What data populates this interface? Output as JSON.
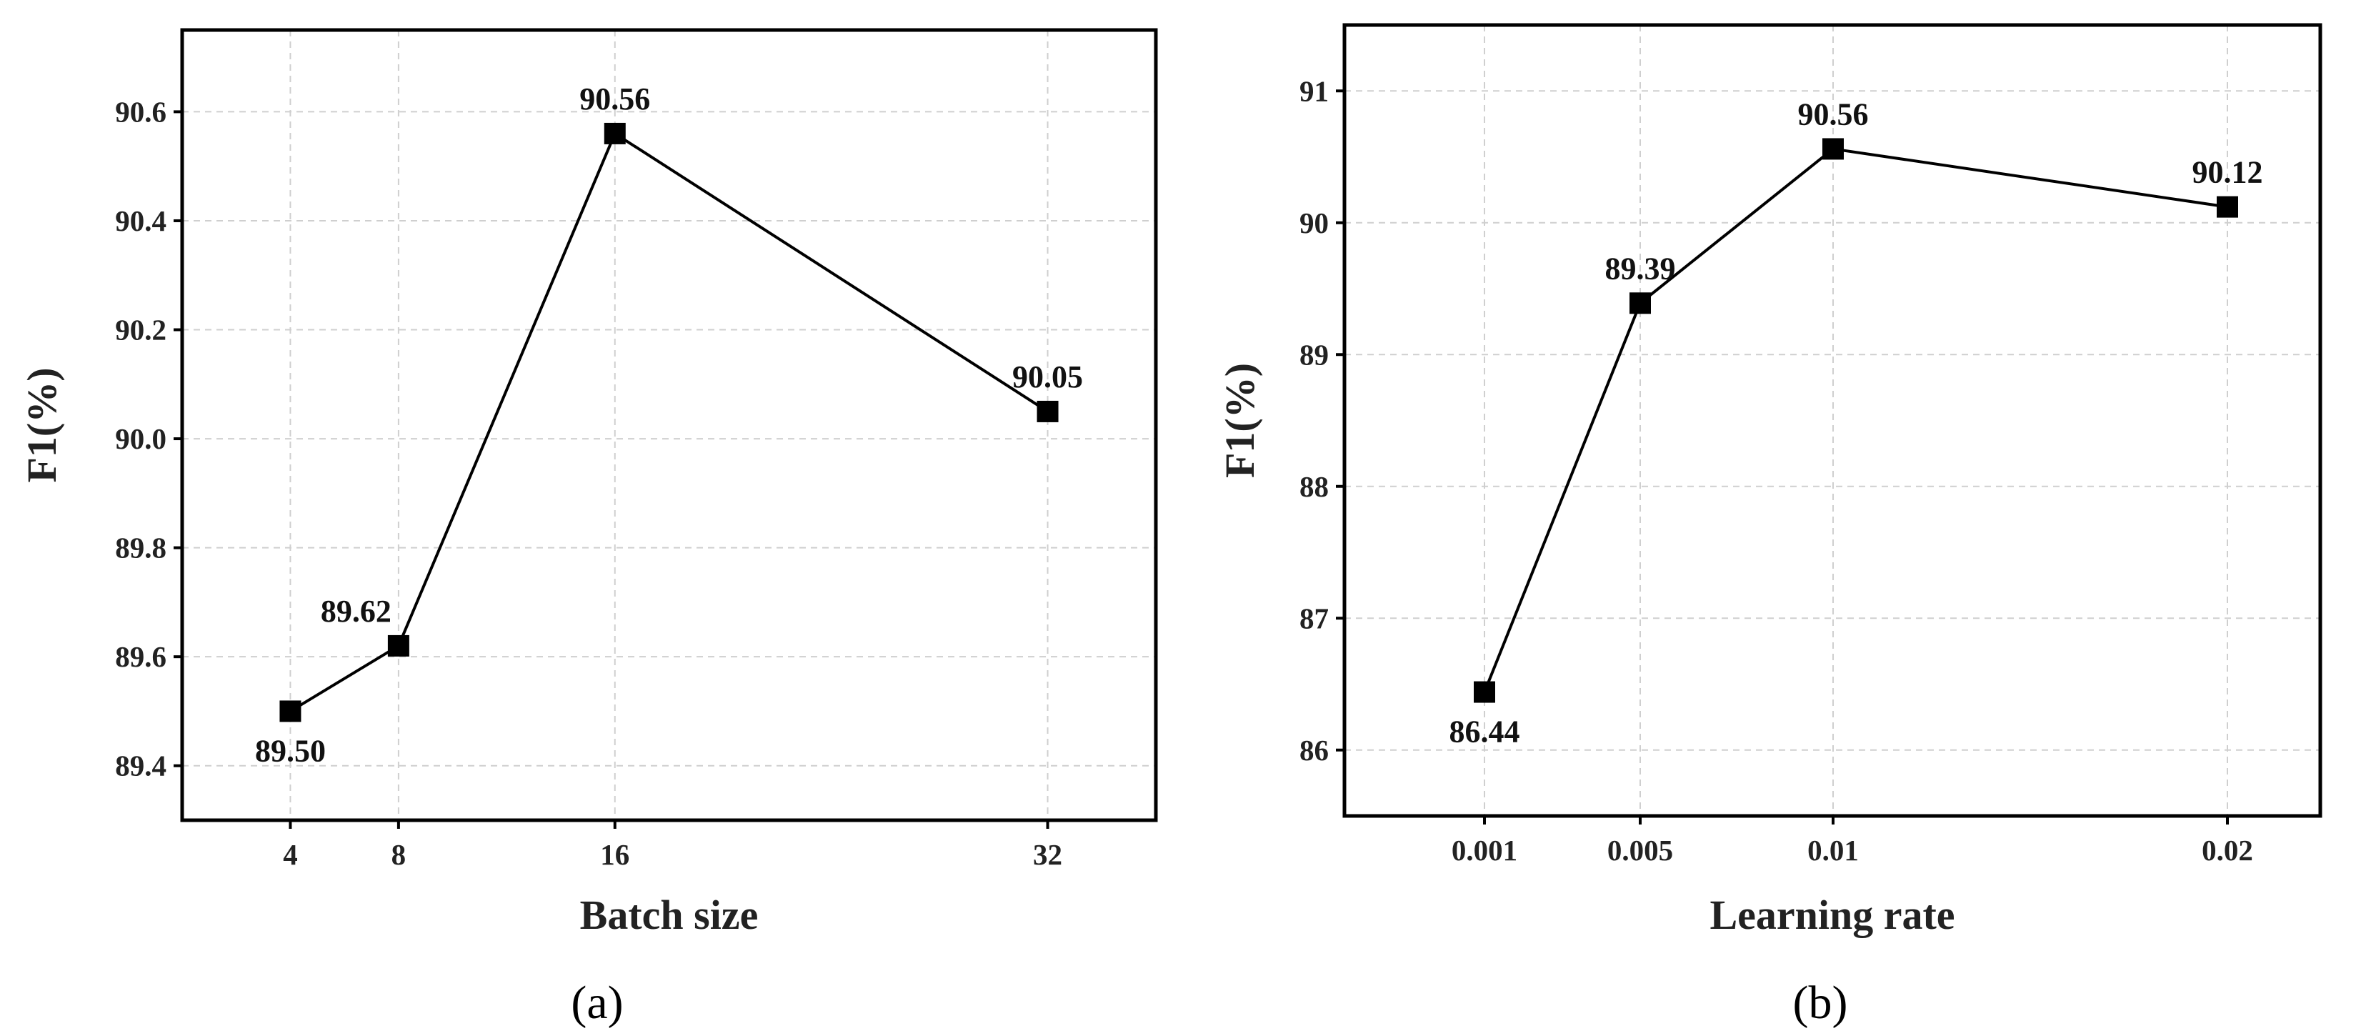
{
  "chart_data": [
    {
      "type": "line",
      "panel_label": "(a)",
      "xlabel": "Batch size",
      "ylabel": "F1(%)",
      "x": [
        4,
        8,
        16,
        32
      ],
      "x_tick_labels": [
        "4",
        "8",
        "16",
        "32"
      ],
      "xlim": [
        0,
        36
      ],
      "ylim": [
        89.3,
        90.75
      ],
      "y_ticks": [
        89.4,
        89.6,
        89.8,
        90.0,
        90.2,
        90.4,
        90.6
      ],
      "y_tick_labels": [
        "89.4",
        "89.6",
        "89.8",
        "90.0",
        "90.2",
        "90.4",
        "90.6"
      ],
      "series": [
        {
          "values": [
            89.5,
            89.62,
            90.56,
            90.05
          ],
          "labels": [
            "89.50",
            "89.62",
            "90.56",
            "90.05"
          ],
          "label_positions": [
            "below",
            "above-left",
            "above",
            "above"
          ]
        }
      ],
      "grid": true,
      "marker": "square"
    },
    {
      "type": "line",
      "panel_label": "(b)",
      "xlabel": "Learning rate",
      "ylabel": "F1(%)",
      "x": [
        "0.001",
        "0.005",
        "0.01",
        "0.02"
      ],
      "x_tick_labels": [
        "0.001",
        "0.005",
        "0.01",
        "0.02"
      ],
      "ylim": [
        85.5,
        91.5
      ],
      "y_ticks": [
        86,
        87,
        88,
        89,
        90,
        91
      ],
      "y_tick_labels": [
        "86",
        "87",
        "88",
        "89",
        "90",
        "91"
      ],
      "series": [
        {
          "values": [
            86.44,
            89.39,
            90.56,
            90.12
          ],
          "labels": [
            "86.44",
            "89.39",
            "90.56",
            "90.12"
          ],
          "label_positions": [
            "below",
            "above",
            "above",
            "above"
          ]
        }
      ],
      "grid": true,
      "marker": "square"
    }
  ],
  "colors": {
    "line": "#000000",
    "grid": "#cfcfcf",
    "frame": "#000000"
  }
}
